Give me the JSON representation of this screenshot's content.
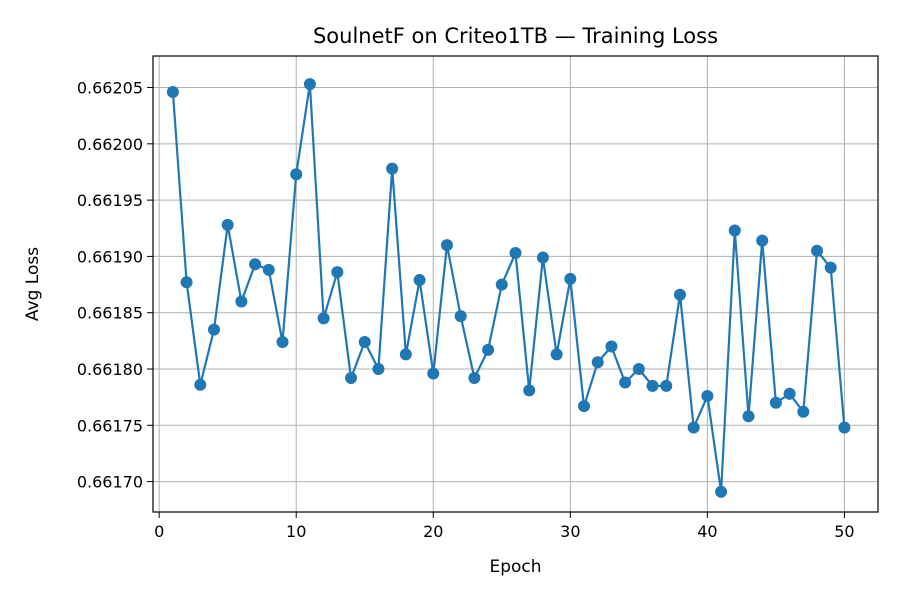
{
  "chart_data": {
    "type": "line",
    "title": "SoulnetF on Criteo1TB — Training Loss",
    "xlabel": "Epoch",
    "ylabel": "Avg Loss",
    "xlim": [
      -0.45,
      52.45
    ],
    "ylim": [
      0.661673,
      0.662078
    ],
    "xticks": [
      0,
      10,
      20,
      30,
      40,
      50
    ],
    "yticks": [
      0.6617,
      0.66175,
      0.6618,
      0.66185,
      0.6619,
      0.66195,
      0.662,
      0.66205
    ],
    "ytick_labels": [
      "0.66170",
      "0.66175",
      "0.66180",
      "0.66185",
      "0.66190",
      "0.66195",
      "0.66200",
      "0.66205"
    ],
    "grid": true,
    "colors": {
      "line": "#1f77b4",
      "grid": "#b0b0b0",
      "axes": "#000000"
    },
    "series": [
      {
        "x": [
          1,
          2,
          3,
          4,
          5,
          6,
          7,
          8,
          9,
          10,
          11,
          12,
          13,
          14,
          15,
          16,
          17,
          18,
          19,
          20,
          21,
          22,
          23,
          24,
          25,
          26,
          27,
          28,
          29,
          30,
          31,
          32,
          33,
          34,
          35,
          36,
          37,
          38,
          39,
          40,
          41,
          42,
          43,
          44,
          45,
          46,
          47,
          48,
          49,
          50
        ],
        "values": [
          0.662046,
          0.661877,
          0.661786,
          0.661835,
          0.661928,
          0.66186,
          0.661893,
          0.661888,
          0.661824,
          0.661973,
          0.662053,
          0.661845,
          0.661886,
          0.661792,
          0.661824,
          0.6618,
          0.661978,
          0.661813,
          0.661879,
          0.661796,
          0.66191,
          0.661847,
          0.661792,
          0.661817,
          0.661875,
          0.661903,
          0.661781,
          0.661899,
          0.661813,
          0.66188,
          0.661767,
          0.661806,
          0.66182,
          0.661788,
          0.6618,
          0.661785,
          0.661785,
          0.661866,
          0.661748,
          0.661776,
          0.661691,
          0.661923,
          0.661758,
          0.661914,
          0.66177,
          0.661778,
          0.661762,
          0.661905,
          0.66189,
          0.661748
        ]
      }
    ]
  }
}
